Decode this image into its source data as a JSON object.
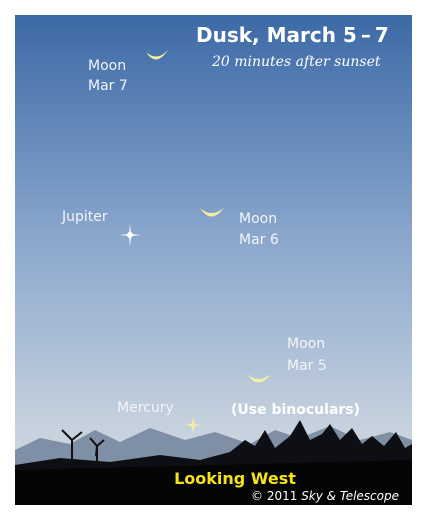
{
  "title": "Dusk, March 5 – 7",
  "subtitle": "20 minutes after sunset",
  "labels": [
    {
      "name": "Moon",
      "date": "Mar 7"
    },
    {
      "name": "Jupiter"
    },
    {
      "name": "Moon",
      "date": "Mar 6"
    },
    {
      "name": "Moon",
      "date": "Mar 5"
    },
    {
      "name": "Mercury"
    }
  ],
  "note": "(Use binoculars)",
  "direction": "Looking West",
  "copyright": {
    "year": "© 2011",
    "publisher": "Sky & Telescope"
  }
}
